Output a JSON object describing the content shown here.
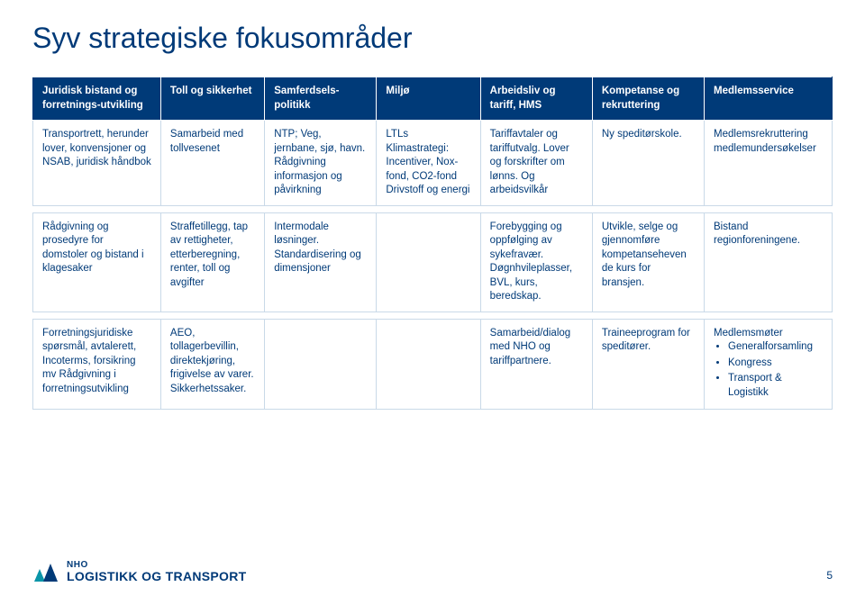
{
  "title": "Syv strategiske fokusområder",
  "colors": {
    "brand_blue": "#003a78",
    "header_bg": "#003a78",
    "header_text": "#ffffff",
    "cell_text": "#003a78",
    "cell_border": "#c9d9e8",
    "logo_accent": "#0a95a8",
    "background": "#ffffff"
  },
  "table": {
    "headers": [
      "Juridisk bistand og forretnings-utvikling",
      "Toll og sikkerhet",
      "Samferdsels-politikk",
      "Miljø",
      "Arbeidsliv og tariff, HMS",
      "Kompetanse og rekruttering",
      "Medlemsservice"
    ],
    "col_widths_pct": [
      16,
      13,
      14,
      13,
      14,
      14,
      16
    ],
    "rows": [
      {
        "cells": [
          "Transportrett, herunder lover, konvensjoner og NSAB, juridisk håndbok",
          "Samarbeid med tollvesenet",
          "NTP; Veg, jernbane, sjø, havn. Rådgivning informasjon og påvirkning",
          "LTLs Klimastrategi: Incentiver, Nox-fond, CO2-fond Drivstoff og energi",
          "Tariffavtaler og tariffutvalg. Lover og forskrifter om lønns. Og arbeidsvilkår",
          "Ny speditørskole.",
          "Medlemsrekruttering medlemundersøkelser"
        ]
      },
      {
        "cells": [
          "Rådgivning og prosedyre for domstoler og bistand i klagesaker",
          "Straffetillegg, tap av rettigheter, etterberegning, renter, toll og avgifter",
          "Intermodale løsninger. Standardisering og dimensjoner",
          "",
          "Forebygging og oppfølging av sykefravær. Døgnhvileplasser, BVL, kurs, beredskap.",
          "Utvikle, selge og gjennomføre kompetanseheven de kurs for bransjen.",
          "Bistand regionforeningene."
        ]
      },
      {
        "cells": [
          "Forretningsjuridiske spørsmål, avtalerett, Incoterms, forsikring mv Rådgivning i forretningsutvikling",
          "AEO, tollagerbevillin, direktekjøring, frigivelse av varer. Sikkerhetssaker.",
          "",
          "",
          "Samarbeid/dialog med NHO og tariffpartnere.",
          "Traineeprogram for speditører.",
          {
            "type": "list",
            "prefix": "Medlemsmøter",
            "items": [
              "Generalforsamling",
              "Kongress",
              "Transport & Logistikk"
            ]
          }
        ]
      }
    ]
  },
  "logo": {
    "nho": "NHO",
    "main": "LOGISTIKK OG TRANSPORT"
  },
  "page_number": "5"
}
